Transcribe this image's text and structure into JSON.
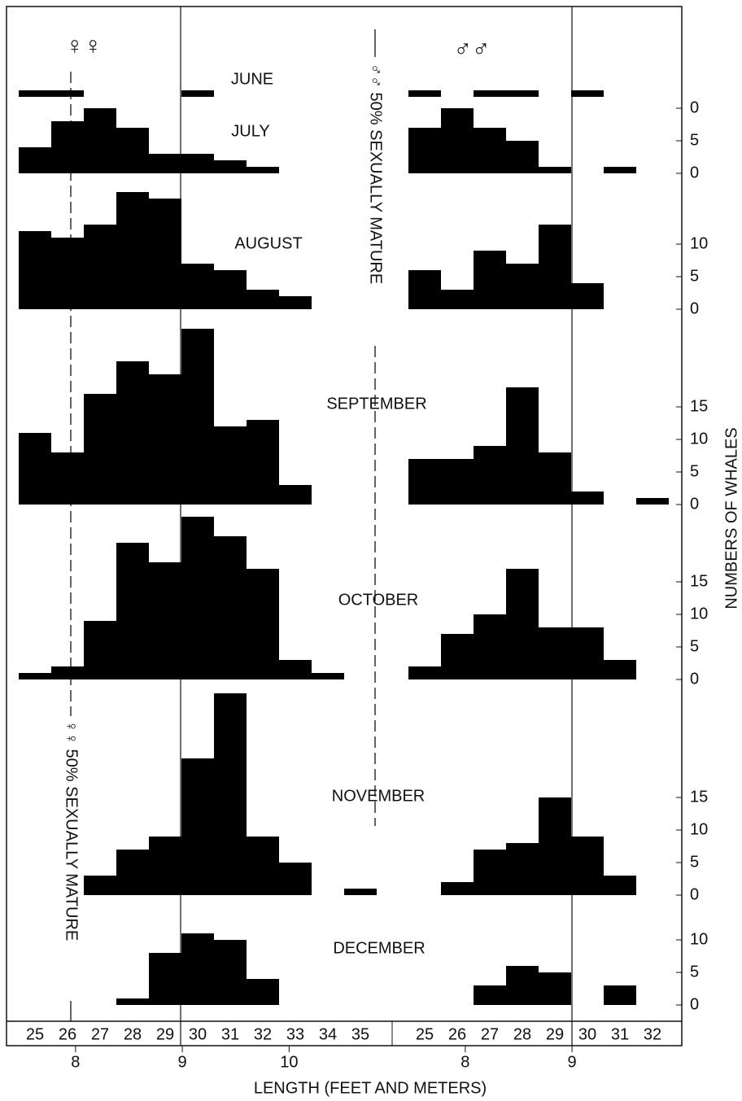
{
  "chart_data": {
    "type": "histogram-panels",
    "female_symbol": "♀♀",
    "male_symbol": "♂♂",
    "female_maturity_label": "♀♀ 50% SEXUALLY MATURE",
    "male_maturity_label": "♂♂ 50% SEXUALLY MATURE",
    "x_label": "LENGTH (FEET AND METERS)",
    "y_label": "NUMBERS OF WHALES",
    "female_categories": [
      "25",
      "26",
      "27",
      "28",
      "29",
      "30",
      "31",
      "32",
      "33",
      "34",
      "35"
    ],
    "male_categories": [
      "25",
      "26",
      "27",
      "28",
      "29",
      "30",
      "31",
      "32"
    ],
    "female_meter_ticks": [
      8,
      9,
      10
    ],
    "male_meter_ticks": [
      8,
      9
    ],
    "color": "#000000",
    "panels": [
      {
        "name": "JUNE",
        "female": [
          1,
          1,
          0,
          0,
          0,
          1,
          0,
          0,
          0,
          0,
          0
        ],
        "male": [
          1,
          0,
          1,
          1,
          0,
          1,
          0,
          0
        ],
        "yticks": []
      },
      {
        "name": "JULY",
        "female": [
          4,
          8,
          10,
          7,
          3,
          3,
          2,
          1,
          0,
          0,
          0
        ],
        "male": [
          7,
          10,
          7,
          5,
          1,
          0,
          1,
          0
        ],
        "yticks": [
          0,
          5,
          {
            "value": 10,
            "label": "0"
          }
        ]
      },
      {
        "name": "AUGUST",
        "female": [
          12,
          11,
          13,
          18,
          17,
          7,
          6,
          3,
          2,
          0,
          0
        ],
        "male": [
          6,
          3,
          9,
          7,
          13,
          4,
          0,
          0
        ],
        "yticks": [
          0,
          5,
          10
        ]
      },
      {
        "name": "SEPTEMBER",
        "female": [
          11,
          8,
          17,
          22,
          20,
          27,
          12,
          13,
          3,
          0,
          0
        ],
        "male": [
          7,
          7,
          9,
          18,
          8,
          2,
          0,
          1
        ],
        "yticks": [
          0,
          5,
          10,
          15
        ]
      },
      {
        "name": "OCTOBER",
        "female": [
          1,
          2,
          9,
          21,
          18,
          25,
          22,
          17,
          3,
          1,
          0
        ],
        "male": [
          2,
          7,
          10,
          17,
          8,
          8,
          3,
          0
        ],
        "yticks": [
          0,
          5,
          10,
          15
        ]
      },
      {
        "name": "NOVEMBER",
        "female": [
          0,
          0,
          3,
          7,
          9,
          21,
          31,
          9,
          5,
          0,
          1
        ],
        "male": [
          0,
          2,
          7,
          8,
          15,
          9,
          3,
          0
        ],
        "yticks": [
          0,
          5,
          10,
          15
        ]
      },
      {
        "name": "DECEMBER",
        "female": [
          0,
          0,
          0,
          1,
          8,
          11,
          10,
          4,
          0,
          0,
          0
        ],
        "male": [
          0,
          0,
          3,
          6,
          5,
          0,
          3,
          0
        ],
        "yticks": [
          0,
          5,
          10
        ]
      }
    ]
  }
}
